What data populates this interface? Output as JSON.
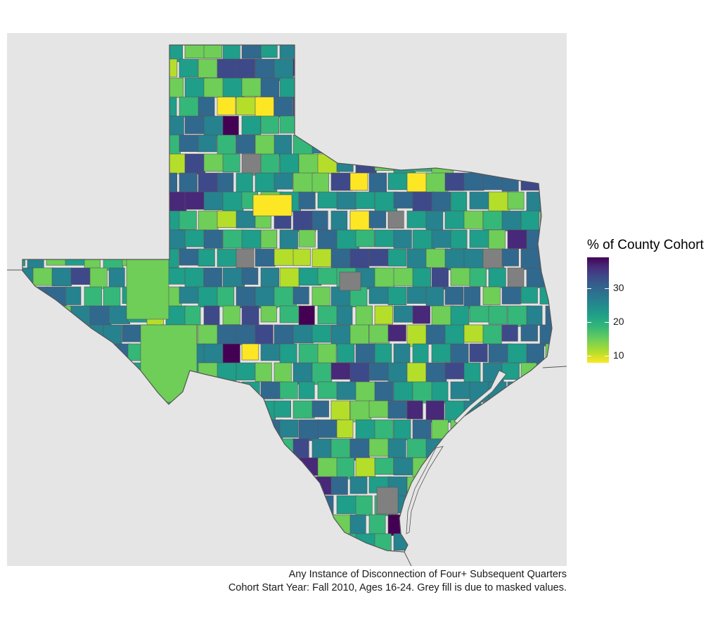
{
  "map": {
    "region": "Texas counties",
    "fill_scale": "viridis (reversed)",
    "masked_fill_color": "#808080",
    "background_color": "#e5e5e5",
    "border_color": "#555555"
  },
  "legend": {
    "title": "% of County Cohort",
    "min": 8,
    "max": 39,
    "ticks": [
      {
        "value": 10,
        "label": "10"
      },
      {
        "value": 20,
        "label": "20"
      },
      {
        "value": 30,
        "label": "30"
      }
    ],
    "colors": [
      "#fde725",
      "#b5de2b",
      "#6ece58",
      "#35b779",
      "#1f9e89",
      "#26828e",
      "#31688e",
      "#3e4989",
      "#482878",
      "#440154"
    ]
  },
  "caption": {
    "line1": "Any Instance of Disconnection of Four+ Subsequent Quarters",
    "line2": "Cohort Start Year: Fall 2010, Ages 16-24. Grey fill is due to masked values."
  }
}
